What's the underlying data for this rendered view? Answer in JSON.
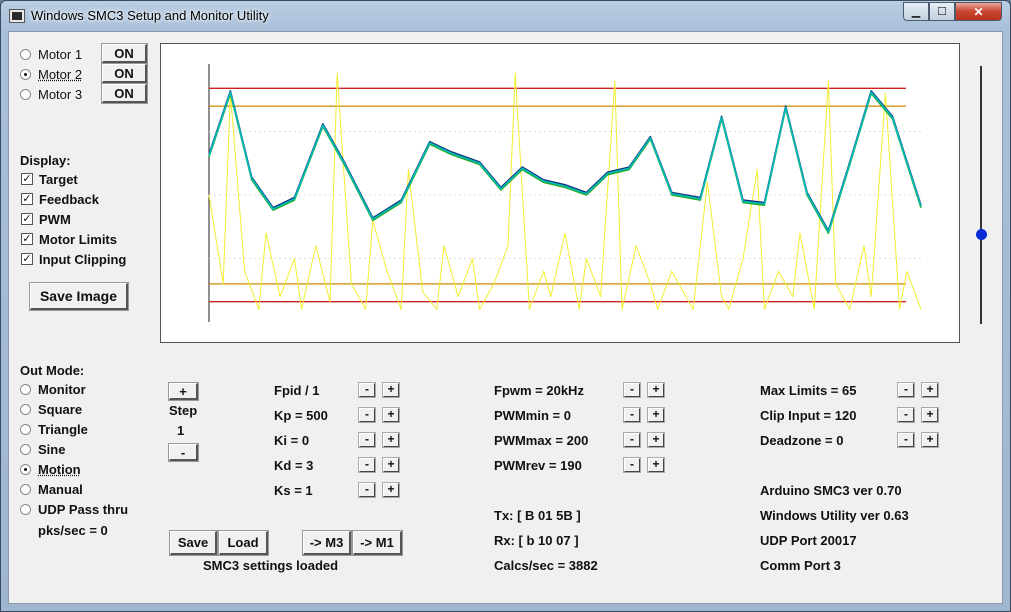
{
  "window": {
    "title": "Windows SMC3 Setup and Monitor Utility"
  },
  "motors": [
    {
      "label": "Motor 1",
      "button": "ON",
      "selected": false
    },
    {
      "label": "Motor 2",
      "button": "ON",
      "selected": true
    },
    {
      "label": "Motor 3",
      "button": "ON",
      "selected": false
    }
  ],
  "display": {
    "heading": "Display:",
    "options": [
      {
        "label": "Target",
        "checked": true
      },
      {
        "label": "Feedback",
        "checked": true
      },
      {
        "label": "PWM",
        "checked": true
      },
      {
        "label": "Motor Limits",
        "checked": true
      },
      {
        "label": "Input Clipping",
        "checked": true
      }
    ],
    "save_image": "Save Image"
  },
  "out_mode": {
    "heading": "Out Mode:",
    "options": [
      {
        "label": "Monitor",
        "selected": false
      },
      {
        "label": "Square",
        "selected": false
      },
      {
        "label": "Triangle",
        "selected": false
      },
      {
        "label": "Sine",
        "selected": false
      },
      {
        "label": "Motion",
        "selected": true
      },
      {
        "label": "Manual",
        "selected": false
      },
      {
        "label": "UDP Pass thru",
        "selected": false
      }
    ],
    "pks_sec": "pks/sec = 0"
  },
  "step": {
    "plus": "+",
    "minus": "-",
    "label": "Step",
    "value": "1"
  },
  "pid": [
    {
      "label": "Fpid / 1"
    },
    {
      "label": "Kp = 500"
    },
    {
      "label": "Ki = 0"
    },
    {
      "label": "Kd = 3"
    },
    {
      "label": "Ks = 1"
    }
  ],
  "pwm": [
    {
      "label": "Fpwm = 20kHz"
    },
    {
      "label": "PWMmin = 0"
    },
    {
      "label": "PWMmax = 200"
    },
    {
      "label": "PWMrev = 190"
    }
  ],
  "limits": [
    {
      "label": "Max Limits = 65"
    },
    {
      "label": "Clip Input = 120"
    },
    {
      "label": "Deadzone = 0"
    }
  ],
  "comm": {
    "tx": "Tx: [ B 01 5B ]",
    "rx": "Rx: [ b 10 07 ]",
    "calcs": "Calcs/sec = 3882"
  },
  "info": {
    "arduino": "Arduino SMC3 ver 0.70",
    "windows": "Windows Utility ver 0.63",
    "udp": "UDP Port 20017",
    "comm_port": "Comm Port 3"
  },
  "buttons": {
    "save": "Save",
    "load": "Load",
    "to_m3": "-> M3",
    "to_m1": "-> M1",
    "status": "SMC3 settings loaded"
  },
  "spin": {
    "minus": "-",
    "plus": "+"
  },
  "chart_data": {
    "type": "line",
    "ylim": [
      0,
      1
    ],
    "limit_lines": {
      "outer": [
        0.08,
        0.92
      ],
      "inner": [
        0.15,
        0.85
      ],
      "colors": [
        "#cc2222",
        "#cc8800"
      ]
    },
    "series": [
      {
        "color": "#22aa22",
        "x": [
          0,
          0.03,
          0.06,
          0.09,
          0.12,
          0.16,
          0.19,
          0.23,
          0.27,
          0.31,
          0.34,
          0.38,
          0.41,
          0.44,
          0.47,
          0.5,
          0.53,
          0.56,
          0.59,
          0.62,
          0.65,
          0.69,
          0.72,
          0.75,
          0.78,
          0.81,
          0.84,
          0.87,
          0.9,
          0.93,
          0.96,
          1.0
        ],
        "y": [
          0.65,
          0.9,
          0.56,
          0.44,
          0.48,
          0.77,
          0.62,
          0.4,
          0.47,
          0.7,
          0.66,
          0.62,
          0.52,
          0.6,
          0.55,
          0.53,
          0.5,
          0.58,
          0.6,
          0.72,
          0.5,
          0.48,
          0.8,
          0.47,
          0.46,
          0.84,
          0.5,
          0.35,
          0.62,
          0.9,
          0.8,
          0.45
        ]
      },
      {
        "color": "#113377",
        "x": [
          0,
          0.03,
          0.06,
          0.09,
          0.12,
          0.16,
          0.19,
          0.23,
          0.27,
          0.31,
          0.34,
          0.38,
          0.41,
          0.44,
          0.47,
          0.5,
          0.53,
          0.56,
          0.59,
          0.62,
          0.65,
          0.69,
          0.72,
          0.75,
          0.78,
          0.81,
          0.84,
          0.87,
          0.9,
          0.93,
          0.96,
          1.0
        ],
        "y": [
          0.66,
          0.91,
          0.57,
          0.45,
          0.49,
          0.78,
          0.63,
          0.41,
          0.48,
          0.71,
          0.67,
          0.63,
          0.53,
          0.61,
          0.56,
          0.54,
          0.51,
          0.59,
          0.61,
          0.73,
          0.51,
          0.49,
          0.81,
          0.48,
          0.47,
          0.85,
          0.51,
          0.36,
          0.63,
          0.91,
          0.81,
          0.46
        ]
      },
      {
        "color": "#00bbbb",
        "x": [
          0,
          0.03,
          0.06,
          0.09,
          0.12,
          0.16,
          0.19,
          0.23,
          0.27,
          0.31,
          0.34,
          0.38,
          0.41,
          0.44,
          0.47,
          0.5,
          0.53,
          0.56,
          0.59,
          0.62,
          0.65,
          0.69,
          0.72,
          0.75,
          0.78,
          0.81,
          0.84,
          0.87,
          0.9,
          0.93,
          0.96,
          1.0
        ],
        "y": [
          0.655,
          0.905,
          0.565,
          0.445,
          0.485,
          0.775,
          0.625,
          0.405,
          0.475,
          0.705,
          0.665,
          0.625,
          0.525,
          0.605,
          0.555,
          0.535,
          0.505,
          0.585,
          0.605,
          0.725,
          0.505,
          0.485,
          0.805,
          0.475,
          0.465,
          0.845,
          0.505,
          0.355,
          0.625,
          0.905,
          0.805,
          0.455
        ]
      },
      {
        "color": "#f2ee30",
        "x": [
          0,
          0.02,
          0.03,
          0.05,
          0.07,
          0.08,
          0.1,
          0.12,
          0.13,
          0.15,
          0.17,
          0.18,
          0.2,
          0.22,
          0.23,
          0.25,
          0.27,
          0.28,
          0.3,
          0.32,
          0.33,
          0.35,
          0.37,
          0.38,
          0.4,
          0.42,
          0.43,
          0.45,
          0.47,
          0.48,
          0.5,
          0.52,
          0.53,
          0.55,
          0.57,
          0.58,
          0.6,
          0.62,
          0.63,
          0.65,
          0.67,
          0.68,
          0.7,
          0.72,
          0.73,
          0.75,
          0.77,
          0.78,
          0.8,
          0.82,
          0.83,
          0.85,
          0.87,
          0.88,
          0.9,
          0.92,
          0.93,
          0.95,
          0.97,
          0.98,
          1.0
        ],
        "y": [
          0.5,
          0.15,
          0.9,
          0.2,
          0.05,
          0.35,
          0.1,
          0.25,
          0.05,
          0.3,
          0.08,
          0.98,
          0.15,
          0.05,
          0.4,
          0.2,
          0.05,
          0.6,
          0.12,
          0.05,
          0.3,
          0.1,
          0.25,
          0.05,
          0.15,
          0.3,
          0.98,
          0.05,
          0.2,
          0.1,
          0.35,
          0.05,
          0.25,
          0.1,
          0.95,
          0.05,
          0.3,
          0.15,
          0.05,
          0.2,
          0.1,
          0.05,
          0.55,
          0.1,
          0.05,
          0.25,
          0.6,
          0.05,
          0.2,
          0.1,
          0.35,
          0.05,
          0.95,
          0.15,
          0.05,
          0.3,
          0.1,
          0.9,
          0.05,
          0.2,
          0.05
        ]
      }
    ]
  }
}
